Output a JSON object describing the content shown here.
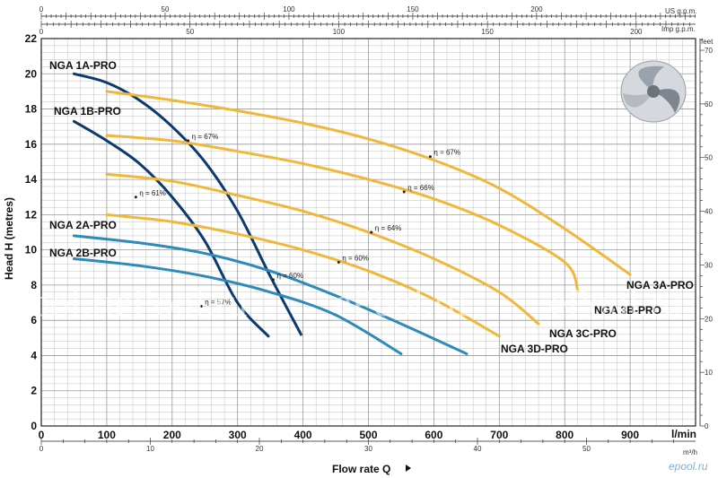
{
  "chart_data": {
    "type": "line",
    "title": "",
    "xlabel": "Flow rate Q",
    "xunit": "l/min",
    "ylabel": "Head H (metres)",
    "xlim": [
      0,
      1000
    ],
    "ylim": [
      0,
      22
    ],
    "grid": true,
    "x_ticks": [
      0,
      100,
      200,
      300,
      400,
      500,
      600,
      700,
      800,
      900
    ],
    "y_ticks": [
      0,
      2,
      4,
      6,
      8,
      10,
      12,
      14,
      16,
      18,
      20,
      22
    ],
    "secondary_axes": {
      "us_gpm": {
        "label": "US g.p.m.",
        "ticks": [
          0,
          50,
          100,
          150,
          200
        ]
      },
      "imp_gpm": {
        "label": "Imp g.p.m.",
        "ticks": [
          0,
          50,
          100,
          150,
          200
        ]
      },
      "m3h": {
        "label": "m³/h",
        "ticks": [
          0,
          10,
          20,
          30,
          40,
          50
        ]
      },
      "feet": {
        "label": "feet",
        "ticks": [
          0,
          10,
          20,
          30,
          40,
          50,
          60,
          70
        ]
      }
    },
    "colors": {
      "dark": "#0d3a6e",
      "medium": "#2e8ab8",
      "yellow": "#f0b83a",
      "grid": "#999999"
    },
    "series": [
      {
        "name": "NGA 1A-PRO",
        "color": "#0d3a6e",
        "points": [
          [
            50,
            20.0
          ],
          [
            100,
            19.5
          ],
          [
            150,
            18.5
          ],
          [
            200,
            17.0
          ],
          [
            250,
            15.0
          ],
          [
            300,
            12.2
          ],
          [
            350,
            8.5
          ],
          [
            397,
            5.2
          ]
        ]
      },
      {
        "name": "NGA 1B-PRO",
        "color": "#0d3a6e",
        "points": [
          [
            50,
            17.3
          ],
          [
            100,
            16.2
          ],
          [
            150,
            14.9
          ],
          [
            200,
            13.0
          ],
          [
            250,
            10.5
          ],
          [
            300,
            7.0
          ],
          [
            347,
            5.1
          ]
        ]
      },
      {
        "name": "NGA 2A-PRO",
        "color": "#2e8ab8",
        "points": [
          [
            50,
            10.8
          ],
          [
            150,
            10.4
          ],
          [
            250,
            9.8
          ],
          [
            350,
            8.8
          ],
          [
            450,
            7.4
          ],
          [
            550,
            5.8
          ],
          [
            650,
            4.1
          ]
        ]
      },
      {
        "name": "NGA 2B-PRO",
        "color": "#2e8ab8",
        "points": [
          [
            50,
            9.5
          ],
          [
            150,
            9.1
          ],
          [
            250,
            8.5
          ],
          [
            350,
            7.6
          ],
          [
            450,
            6.3
          ],
          [
            550,
            4.1
          ]
        ]
      },
      {
        "name": "NGA 3A-PRO",
        "color": "#f0b83a",
        "points": [
          [
            100,
            19.0
          ],
          [
            200,
            18.5
          ],
          [
            300,
            17.9
          ],
          [
            400,
            17.2
          ],
          [
            500,
            16.3
          ],
          [
            600,
            15.1
          ],
          [
            700,
            13.5
          ],
          [
            800,
            11.2
          ],
          [
            900,
            8.6
          ]
        ]
      },
      {
        "name": "NGA 3B-PRO",
        "color": "#f0b83a",
        "points": [
          [
            100,
            16.5
          ],
          [
            200,
            16.2
          ],
          [
            300,
            15.6
          ],
          [
            400,
            14.9
          ],
          [
            500,
            14.0
          ],
          [
            600,
            12.9
          ],
          [
            700,
            11.4
          ],
          [
            800,
            9.3
          ],
          [
            820,
            7.7
          ]
        ]
      },
      {
        "name": "NGA 3C-PRO",
        "color": "#f0b83a",
        "points": [
          [
            100,
            14.3
          ],
          [
            200,
            13.9
          ],
          [
            300,
            13.1
          ],
          [
            400,
            12.2
          ],
          [
            500,
            11.0
          ],
          [
            600,
            9.5
          ],
          [
            700,
            7.6
          ],
          [
            760,
            5.8
          ]
        ]
      },
      {
        "name": "NGA 3D-PRO",
        "color": "#f0b83a",
        "points": [
          [
            100,
            12.0
          ],
          [
            200,
            11.6
          ],
          [
            300,
            10.9
          ],
          [
            400,
            10.0
          ],
          [
            500,
            8.8
          ],
          [
            600,
            7.2
          ],
          [
            700,
            5.1
          ]
        ]
      }
    ],
    "efficiency_labels": [
      {
        "text": "η = 67%",
        "x": 230,
        "y": 16.3
      },
      {
        "text": "η = 61%",
        "x": 150,
        "y": 13.1
      },
      {
        "text": "η = 60%",
        "x": 360,
        "y": 8.4
      },
      {
        "text": "η = 57%",
        "x": 250,
        "y": 6.9
      },
      {
        "text": "η = 67%",
        "x": 600,
        "y": 15.4
      },
      {
        "text": "η = 66%",
        "x": 560,
        "y": 13.4
      },
      {
        "text": "η = 64%",
        "x": 510,
        "y": 11.1
      },
      {
        "text": "η = 60%",
        "x": 460,
        "y": 9.4
      }
    ],
    "watermark": "ePool.ru",
    "logo_text": "epool.ru"
  }
}
